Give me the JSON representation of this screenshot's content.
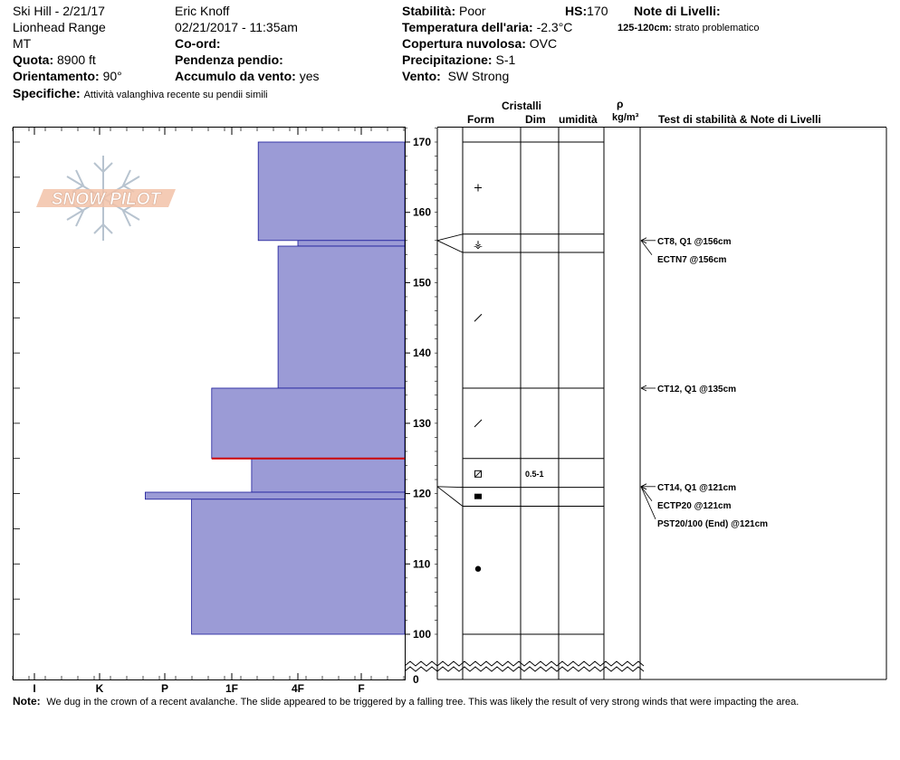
{
  "header": {
    "title": "Ski Hill - 2/21/17",
    "range": "Lionhead Range",
    "state": "MT",
    "observer": "Eric Knoff",
    "datetime": "02/21/2017 - 11:35am",
    "quota_label": "Quota:",
    "quota_value": "8900 ft",
    "orient_label": "Orientamento:",
    "orient_value": "90°",
    "coord_label": "Co-ord:",
    "coord_value": "",
    "pendenza_label": "Pendenza pendio:",
    "pendenza_value": "",
    "accumulo_label": "Accumulo da vento:",
    "accumulo_value": "yes",
    "specifiche_label": "Specifiche:",
    "specifiche_value": "Attività valanghiva recente su pendii simili",
    "stabilita_label": "Stabilità:",
    "stabilita_value": "Poor",
    "hs_label": "HS:",
    "hs_value": "170",
    "temp_label": "Temperatura dell'aria:",
    "temp_value": "-2.3°C",
    "copertura_label": "Copertura nuvolosa:",
    "copertura_value": "OVC",
    "precip_label": "Precipitazione:",
    "precip_value": "S-1",
    "vento_label": "Vento:",
    "vento_value": "SW Strong",
    "note_livelli_label": "Note di Livelli:",
    "note_livelli_range": "125-120cm:",
    "note_livelli_text": "strato problematico"
  },
  "columns": {
    "cristalli": "Cristalli",
    "form": "Form",
    "dim": "Dim",
    "umidita": "umidità",
    "rho": "ρ",
    "density_unit": "kg/m³",
    "tests_header": "Test di stabilità & Note di Livelli"
  },
  "logo_text": "SNOW PILOT",
  "footer": {
    "note_label": "Note:",
    "note_text": "We dug in the crown of a recent avalanche. The slide appeared to be triggered by a falling tree. This was likely the result of very strong winds that were impacting the area."
  },
  "colors": {
    "layer_fill": "#9b9bd6",
    "layer_edge": "#1a1a99",
    "weak_layer_line": "#cc0000"
  },
  "chart_data": {
    "type": "bar",
    "title": "",
    "hardness_ticks": [
      "I",
      "K",
      "P",
      "1F",
      "4F",
      "F"
    ],
    "y_ticks": [
      "100",
      "110",
      "120",
      "130",
      "140",
      "150",
      "160",
      "170"
    ],
    "y_zero_label": "0",
    "ylim": [
      100,
      170
    ],
    "layers": [
      {
        "top": 170,
        "bottom": 156,
        "hardness": 1.6
      },
      {
        "top": 156,
        "bottom": 155.2,
        "hardness": 1.0
      },
      {
        "top": 155.2,
        "bottom": 135,
        "hardness": 1.3
      },
      {
        "top": 135,
        "bottom": 125,
        "hardness": 2.3
      },
      {
        "top": 125,
        "bottom": 120.2,
        "hardness": 1.7
      },
      {
        "top": 120.2,
        "bottom": 119.2,
        "hardness": 3.3
      },
      {
        "top": 119.2,
        "bottom": 100,
        "hardness": 2.6
      }
    ],
    "layer_boundaries": [
      170,
      156.9,
      154.3,
      135,
      125,
      120.9,
      118.2,
      100
    ],
    "grain_symbols": [
      {
        "height": 163.5,
        "symbol": "+"
      },
      {
        "height": 155.6,
        "symbol": "⚶"
      },
      {
        "height": 145,
        "symbol": "/"
      },
      {
        "height": 130,
        "symbol": "/"
      },
      {
        "height": 122.8,
        "symbol": "⊡"
      },
      {
        "height": 119.6,
        "symbol": "■"
      },
      {
        "height": 109.3,
        "symbol": "●"
      }
    ],
    "grain_sizes": [
      {
        "height": 122.8,
        "size": "0.5-1"
      }
    ],
    "stability_tests": [
      {
        "height": 156,
        "text": "CT8, Q1 @156cm"
      },
      {
        "height": 156,
        "text": "ECTN7 @156cm"
      },
      {
        "height": 135,
        "text": "CT12, Q1 @135cm"
      },
      {
        "height": 121,
        "text": "CT14, Q1 @121cm"
      },
      {
        "height": 121,
        "text": "ECTP20 @121cm"
      },
      {
        "height": 121,
        "text": "PST20/100 (End) @121cm"
      }
    ]
  }
}
